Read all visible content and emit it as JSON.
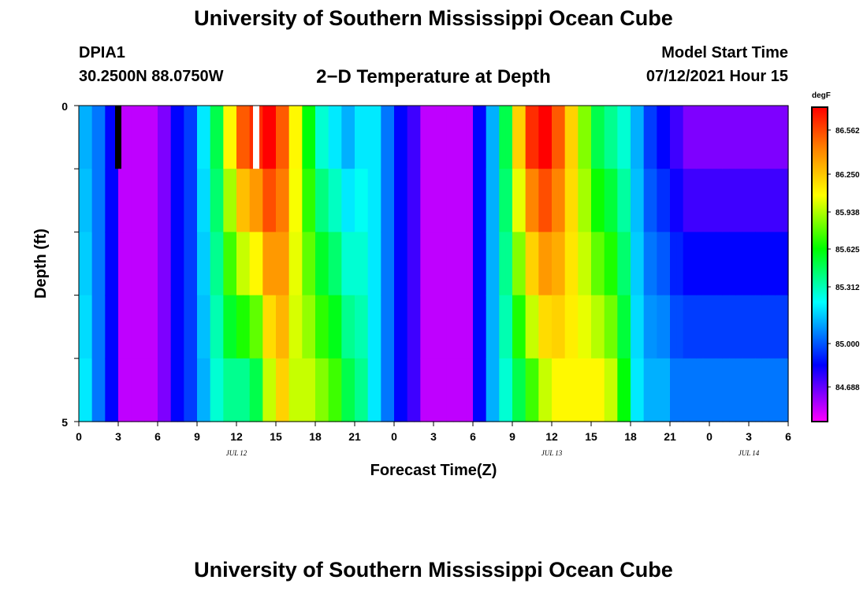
{
  "header": {
    "title": "University of Southern Mississippi Ocean Cube",
    "station": "DPIA1",
    "coords": "30.2500N  88.0750W",
    "plot_title": "2−D Temperature at Depth",
    "model_label": "Model Start Time",
    "model_time": "07/12/2021 Hour 15"
  },
  "footer": {
    "title": "University of Southern Mississippi Ocean Cube"
  },
  "colors": {
    "magenta": "#ff00ff",
    "blue": "#0000ff",
    "cyan": "#00ffff",
    "green": "#00ff00",
    "yellow": "#ffff00",
    "red": "#ff0000"
  },
  "chart_data": {
    "type": "heatmap",
    "xlabel": "Forecast Time(Z)",
    "ylabel": "Depth (ft)",
    "colorbar_unit": "degF",
    "colorbar_ticks": [
      "86.562",
      "86.250",
      "85.938",
      "85.625",
      "85.312",
      "85.000",
      "84.688"
    ],
    "value_range": [
      84.5,
      86.7
    ],
    "x_range": [
      0,
      54
    ],
    "y_range": [
      0,
      5
    ],
    "x_tick_labels": [
      "0",
      "3",
      "6",
      "9",
      "12",
      "15",
      "18",
      "21",
      "0",
      "3",
      "6",
      "9",
      "12",
      "15",
      "18",
      "21",
      "0",
      "3",
      "6"
    ],
    "y_tick_labels": [
      "0",
      "5"
    ],
    "date_labels": [
      {
        "label": "JUL 12",
        "hour": 12
      },
      {
        "label": "JUL 13",
        "hour": 36
      },
      {
        "label": "JUL 14",
        "hour": 51
      }
    ],
    "markers": [
      {
        "hour": 3,
        "color": "#000000"
      },
      {
        "hour": 13.5,
        "color": "#ffffff"
      }
    ],
    "depth_layers": [
      0,
      1,
      2,
      3,
      4
    ],
    "hourly_profile_top": [
      85.2,
      85.1,
      84.9,
      84.6,
      84.6,
      84.6,
      84.7,
      84.9,
      85.0,
      85.3,
      85.6,
      86.1,
      86.5,
      86.6,
      86.7,
      86.5,
      86.1,
      85.7,
      85.4,
      85.3,
      85.2,
      85.3,
      85.3,
      85.1,
      84.9,
      84.8,
      84.6,
      84.6,
      84.6,
      84.6,
      84.9,
      85.2,
      85.6,
      86.2,
      86.6,
      86.7,
      86.5,
      86.2,
      85.9,
      85.6,
      85.5,
      85.4,
      85.2,
      85.0,
      84.9,
      84.8,
      84.7,
      84.7,
      84.7,
      84.7,
      84.7,
      84.7,
      84.7,
      84.7
    ],
    "hourly_profile_bottom": [
      85.3,
      85.1,
      84.9,
      84.6,
      84.6,
      84.6,
      84.7,
      84.9,
      85.0,
      85.2,
      85.4,
      85.5,
      85.5,
      85.6,
      86.0,
      86.2,
      86.0,
      86.0,
      85.9,
      85.8,
      85.6,
      85.5,
      85.3,
      85.1,
      84.9,
      84.8,
      84.6,
      84.6,
      84.6,
      84.6,
      84.9,
      85.2,
      85.4,
      85.6,
      85.8,
      86.0,
      86.1,
      86.1,
      86.1,
      86.1,
      86.0,
      85.7,
      85.3,
      85.2,
      85.2,
      85.1,
      85.1,
      85.1,
      85.1,
      85.1,
      85.1,
      85.1,
      85.1,
      85.1
    ]
  }
}
